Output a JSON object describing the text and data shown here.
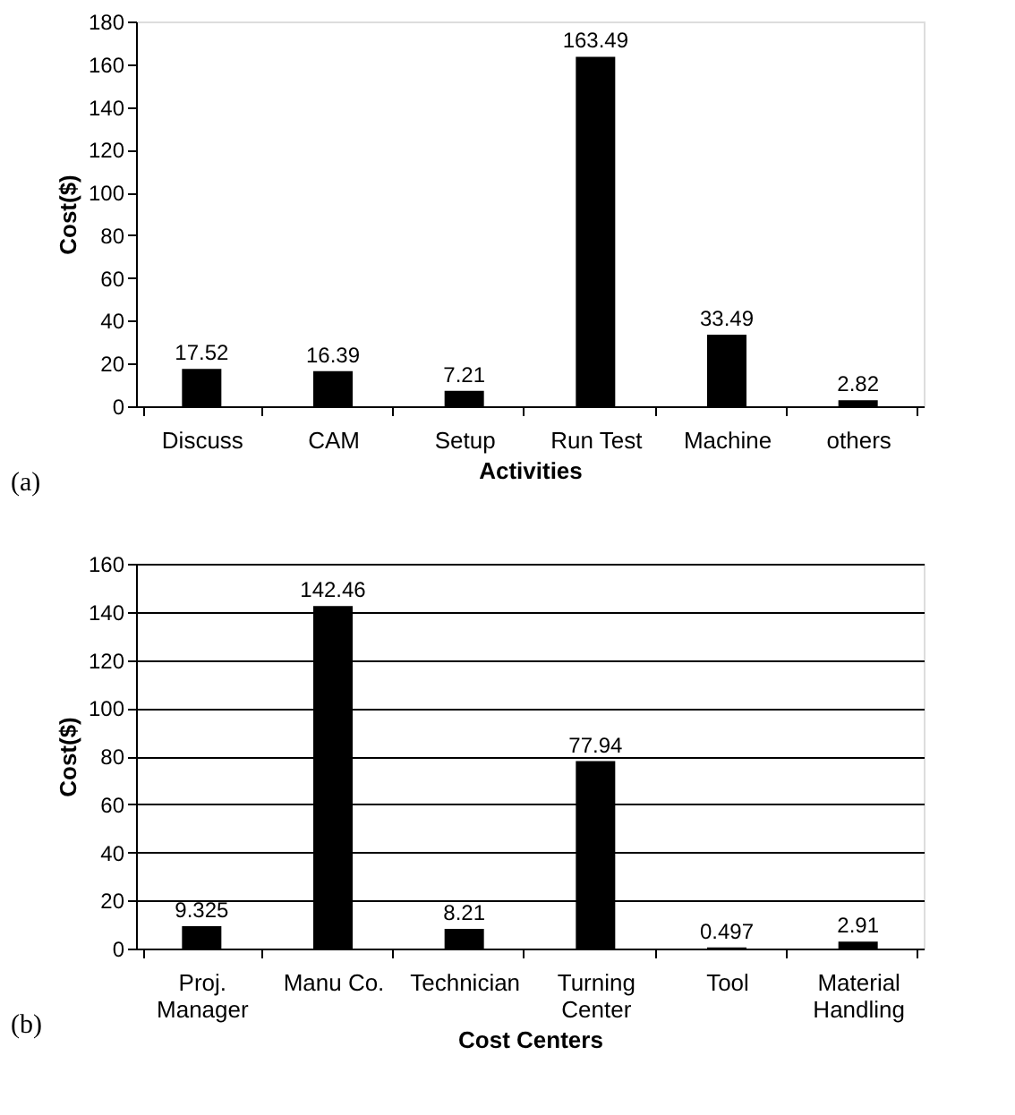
{
  "chart_data": [
    {
      "type": "bar",
      "xlabel": "Activities",
      "ylabel": "Cost($)",
      "categories": [
        "Discuss",
        "CAM",
        "Setup",
        "Run Test",
        "Machine",
        "others"
      ],
      "values": [
        17.52,
        16.39,
        7.21,
        163.49,
        33.49,
        2.82
      ],
      "color": "#000000",
      "ylim": [
        0,
        180
      ],
      "yticks": [
        0,
        20,
        40,
        60,
        80,
        100,
        120,
        140,
        160,
        180
      ],
      "grid": false,
      "data_labels": true,
      "annotations": [
        "(a)"
      ]
    },
    {
      "type": "bar",
      "xlabel": "Cost Centers",
      "ylabel": "Cost($)",
      "categories": [
        "Proj. Manager",
        "Manu Co.",
        "Technician",
        "Turning Center",
        "Tool",
        "Material Handling"
      ],
      "values": [
        9.325,
        142.46,
        8.21,
        77.94,
        0.497,
        2.91
      ],
      "color": "#000000",
      "ylim": [
        0,
        160
      ],
      "yticks": [
        0,
        20,
        40,
        60,
        80,
        100,
        120,
        140,
        160
      ],
      "grid": "y",
      "data_labels": true,
      "annotations": [
        "(b)"
      ]
    }
  ]
}
